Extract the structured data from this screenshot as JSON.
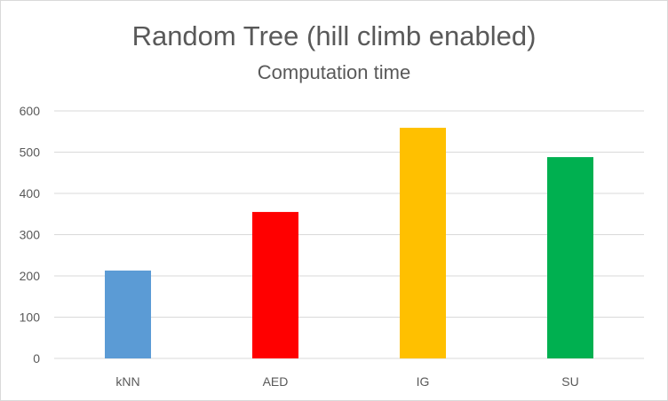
{
  "chart_data": {
    "type": "bar",
    "title": "Random Tree (hill climb enabled)",
    "subtitle": "Computation time",
    "categories": [
      "kNN",
      "AED",
      "IG",
      "SU"
    ],
    "values": [
      213,
      355,
      559,
      488
    ],
    "colors": [
      "#5b9bd5",
      "#ff0000",
      "#ffc000",
      "#00b050"
    ],
    "xlabel": "",
    "ylabel": "",
    "ylim": [
      0,
      600
    ],
    "yticks": [
      0,
      100,
      200,
      300,
      400,
      500,
      600
    ],
    "grid": true,
    "legend": "none"
  }
}
